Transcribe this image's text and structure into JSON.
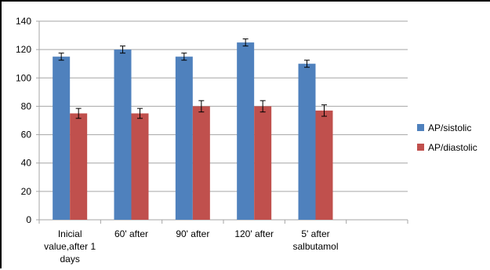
{
  "chart_data": {
    "type": "bar",
    "categories": [
      [
        "Inicial",
        "value,after 1",
        "days"
      ],
      [
        "60' after"
      ],
      [
        "90' after"
      ],
      [
        "120' after"
      ],
      [
        "5' after",
        "salbutamol"
      ]
    ],
    "series": [
      {
        "name": "AP/sistolic",
        "color": "#4f81bd",
        "values": [
          115,
          120,
          115,
          125,
          110
        ],
        "errors": [
          2.5,
          2.5,
          2.5,
          2.5,
          2.5
        ]
      },
      {
        "name": "AP/diastolic",
        "color": "#c0504d",
        "values": [
          75,
          75,
          80,
          80,
          77
        ],
        "errors": [
          3.5,
          3.5,
          4,
          4,
          4
        ]
      }
    ],
    "ylim": [
      0,
      140
    ],
    "yticks": [
      0,
      20,
      40,
      60,
      80,
      100,
      120,
      140
    ],
    "grid": true,
    "legend_position": "right",
    "title": "",
    "xlabel": "",
    "ylabel": ""
  }
}
